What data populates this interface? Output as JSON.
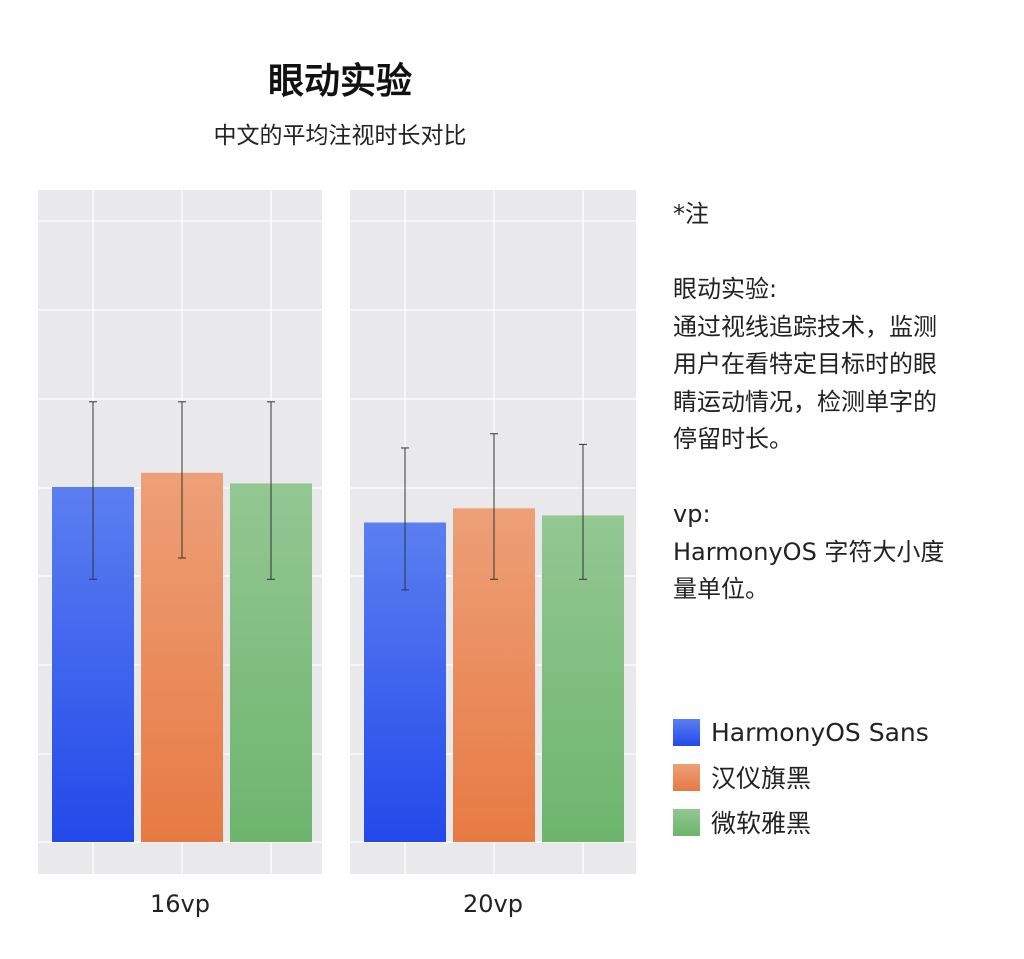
{
  "chart_data": {
    "type": "bar",
    "title": "眼动实验",
    "subtitle": "中文的平均注视时长对比",
    "categories": [
      "16vp",
      "20vp"
    ],
    "ylim": [
      0,
      100
    ],
    "grid": true,
    "series": [
      {
        "name": "HarmonyOS Sans",
        "color_top": "#5b7ff0",
        "color_bottom": "#2349ea",
        "values": [
          50,
          45
        ],
        "error": [
          [
            37,
            62
          ],
          [
            35.5,
            55.5
          ]
        ]
      },
      {
        "name": "汉仪旗黑",
        "color_top": "#eda078",
        "color_bottom": "#e77a43",
        "values": [
          52,
          47
        ],
        "error": [
          [
            40,
            62
          ],
          [
            37,
            57.5
          ]
        ]
      },
      {
        "name": "微软雅黑",
        "color_top": "#93c793",
        "color_bottom": "#6db56d",
        "values": [
          50.5,
          46
        ],
        "error": [
          [
            37,
            62
          ],
          [
            37,
            56
          ]
        ]
      }
    ]
  },
  "note": {
    "heading": "*注",
    "exp_title": "眼动实验:",
    "exp_lines": [
      "通过视线追踪技术，监测",
      "用户在看特定目标时的眼",
      "睛运动情况，检测单字的",
      "停留时长。"
    ],
    "vp_title": "vp:",
    "vp_lines": [
      "HarmonyOS 字符大小度",
      "量单位。"
    ]
  }
}
